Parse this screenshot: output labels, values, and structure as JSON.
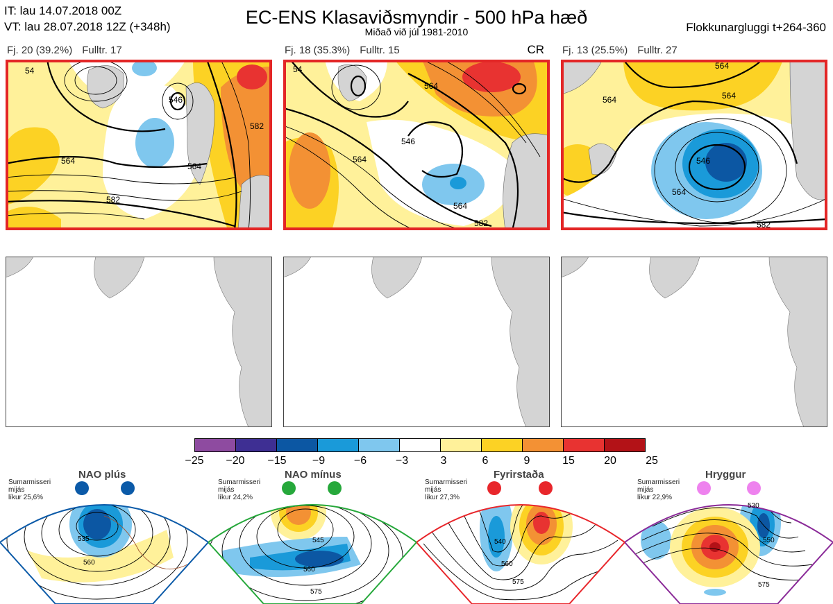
{
  "header": {
    "it": "IT: lau 14.07.2018 00Z",
    "vt": "VT: lau 28.07.2018 12Z  (+348h)",
    "title": "EC-ENS Klasaviðsmyndir - 500 hPa hæð",
    "subtitle": "Miðað við júl 1981-2010",
    "right": "Flokkunargluggi t+264-360"
  },
  "panels": [
    {
      "fj": "Fj. 20 (39.2%)",
      "fulltr": "Fulltr. 17",
      "tag": "",
      "contours": [
        "546",
        "564",
        "564",
        "582",
        "582",
        "54"
      ]
    },
    {
      "fj": "Fj. 18 (35.3%)",
      "fulltr": "Fulltr. 15",
      "tag": "CR",
      "contours": [
        "546",
        "564",
        "564",
        "564",
        "582",
        "54"
      ]
    },
    {
      "fj": "Fj. 13 (25.5%)",
      "fulltr": "Fulltr. 27",
      "tag": "",
      "contours": [
        "564",
        "564",
        "564",
        "546",
        "564",
        "582"
      ]
    }
  ],
  "colorbar": {
    "colors": [
      "#8e4ba0",
      "#3e2f93",
      "#0c57a3",
      "#1a9ad9",
      "#7fc7ee",
      "#ffffff",
      "#fff19a",
      "#fcd224",
      "#f39134",
      "#e83331",
      "#b31217"
    ],
    "labels": [
      "−25",
      "−20",
      "−15",
      "−9",
      "−6",
      "−3",
      "3",
      "6",
      "9",
      "15",
      "20",
      "25"
    ]
  },
  "regimes": [
    {
      "name": "NAO plús",
      "text": [
        "Sumarmisseri",
        "mijás",
        "líkur 25,6%"
      ],
      "color": "#0b5aa8",
      "contours": [
        "535",
        "560"
      ]
    },
    {
      "name": "NAO mínus",
      "text": [
        "Sumarmisseri",
        "mijás",
        "líkur 24,2%"
      ],
      "color": "#26a83b",
      "contours": [
        "545",
        "560",
        "575"
      ]
    },
    {
      "name": "Fyrirstaða",
      "text": [
        "Sumarmisseri",
        "mijás",
        "líkur 27,3%"
      ],
      "color": "#e8262b",
      "contours": [
        "540",
        "560",
        "575"
      ]
    },
    {
      "name": "Hryggur",
      "text": [
        "Sumarmisseri",
        "mijás",
        "líkur 22,9%"
      ],
      "color": "#8a2a98",
      "contours": [
        "530",
        "550",
        "575"
      ]
    }
  ]
}
